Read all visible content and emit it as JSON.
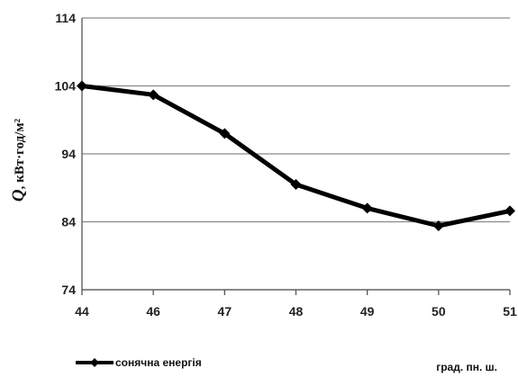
{
  "chart_data": {
    "type": "line",
    "title": "",
    "ylabel_symbol": "Q",
    "ylabel_units": ", кВт·год/м²",
    "xlabel": "град. пн. ш.",
    "categories": [
      "44",
      "46",
      "47",
      "48",
      "49",
      "50",
      "51"
    ],
    "ylim": [
      74,
      114
    ],
    "yticks": [
      74,
      84,
      94,
      104,
      114
    ],
    "grid": "horizontal",
    "legend": "bottom-left",
    "series": [
      {
        "name": "сонячна енергія",
        "values": [
          104,
          102.7,
          97,
          89.5,
          86,
          83.4,
          85.6
        ],
        "color": "#000000",
        "marker": "diamond"
      }
    ]
  }
}
